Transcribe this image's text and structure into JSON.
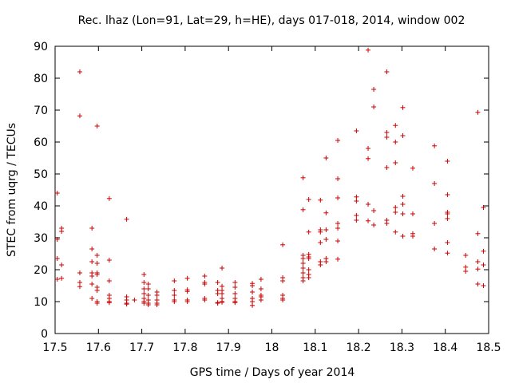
{
  "chart_data": {
    "type": "scatter",
    "title": "Rec. lhaz (Lon=91, Lat=29, h=HE), days 017-018, 2014, window 002",
    "xlabel": "GPS time / Days of year 2014",
    "ylabel": "STEC from uqrg / TECUs",
    "xlim": [
      17.5,
      18.5
    ],
    "ylim": [
      0,
      90
    ],
    "xticks": [
      17.5,
      17.6,
      17.7,
      17.8,
      17.9,
      18.0,
      18.1,
      18.2,
      18.3,
      18.4,
      18.5
    ],
    "xtick_labels": [
      "17.5",
      "17.6",
      "17.7",
      "17.8",
      "17.9",
      "18",
      "18.1",
      "18.2",
      "18.3",
      "18.4",
      "18.5"
    ],
    "yticks": [
      0,
      10,
      20,
      30,
      40,
      50,
      60,
      70,
      80,
      90
    ],
    "ytick_labels": [
      "0",
      "10",
      "20",
      "30",
      "40",
      "50",
      "60",
      "70",
      "80",
      "90"
    ],
    "marker": "+",
    "color": "#cc0000",
    "series": [
      {
        "name": "STEC",
        "points": [
          [
            17.505,
            44
          ],
          [
            17.505,
            29.5
          ],
          [
            17.505,
            23.5
          ],
          [
            17.505,
            17
          ],
          [
            17.515,
            33
          ],
          [
            17.515,
            32
          ],
          [
            17.515,
            21.5
          ],
          [
            17.515,
            17.3
          ],
          [
            17.557,
            82
          ],
          [
            17.557,
            68.2
          ],
          [
            17.557,
            19
          ],
          [
            17.557,
            16
          ],
          [
            17.557,
            14.7
          ],
          [
            17.585,
            33
          ],
          [
            17.585,
            26.5
          ],
          [
            17.585,
            22.5
          ],
          [
            17.585,
            19
          ],
          [
            17.585,
            18
          ],
          [
            17.585,
            15.5
          ],
          [
            17.585,
            11
          ],
          [
            17.597,
            65
          ],
          [
            17.597,
            24.5
          ],
          [
            17.597,
            22
          ],
          [
            17.597,
            19
          ],
          [
            17.597,
            18.5
          ],
          [
            17.597,
            14.5
          ],
          [
            17.597,
            13.5
          ],
          [
            17.597,
            10
          ],
          [
            17.597,
            9.5
          ],
          [
            17.625,
            42.3
          ],
          [
            17.625,
            23
          ],
          [
            17.625,
            16.5
          ],
          [
            17.625,
            12
          ],
          [
            17.625,
            11
          ],
          [
            17.625,
            10
          ],
          [
            17.625,
            9.7
          ],
          [
            17.665,
            35.8
          ],
          [
            17.665,
            11.5
          ],
          [
            17.665,
            10.5
          ],
          [
            17.665,
            9.5
          ],
          [
            17.665,
            9.2
          ],
          [
            17.683,
            10.5
          ],
          [
            17.705,
            18.5
          ],
          [
            17.705,
            16
          ],
          [
            17.705,
            14
          ],
          [
            17.705,
            12.5
          ],
          [
            17.705,
            11
          ],
          [
            17.705,
            10
          ],
          [
            17.705,
            9.5
          ],
          [
            17.715,
            15.5
          ],
          [
            17.715,
            14
          ],
          [
            17.715,
            12
          ],
          [
            17.715,
            10.5
          ],
          [
            17.715,
            9.5
          ],
          [
            17.715,
            9
          ],
          [
            17.735,
            13
          ],
          [
            17.735,
            12
          ],
          [
            17.735,
            10.5
          ],
          [
            17.735,
            9.5
          ],
          [
            17.735,
            9
          ],
          [
            17.775,
            16.5
          ],
          [
            17.775,
            13.5
          ],
          [
            17.775,
            12
          ],
          [
            17.775,
            10.5
          ],
          [
            17.775,
            10
          ],
          [
            17.805,
            17.3
          ],
          [
            17.805,
            13.7
          ],
          [
            17.805,
            13.2
          ],
          [
            17.805,
            10.5
          ],
          [
            17.805,
            10
          ],
          [
            17.845,
            18
          ],
          [
            17.845,
            16
          ],
          [
            17.845,
            15.5
          ],
          [
            17.845,
            11
          ],
          [
            17.845,
            10.5
          ],
          [
            17.875,
            16
          ],
          [
            17.875,
            13.5
          ],
          [
            17.875,
            12.5
          ],
          [
            17.875,
            9.7
          ],
          [
            17.875,
            9.5
          ],
          [
            17.885,
            20.5
          ],
          [
            17.885,
            14.8
          ],
          [
            17.885,
            13.5
          ],
          [
            17.885,
            12.5
          ],
          [
            17.885,
            11
          ],
          [
            17.885,
            10
          ],
          [
            17.885,
            9.8
          ],
          [
            17.915,
            16
          ],
          [
            17.915,
            14.5
          ],
          [
            17.915,
            12.5
          ],
          [
            17.915,
            11
          ],
          [
            17.915,
            10
          ],
          [
            17.915,
            9.7
          ],
          [
            17.955,
            15.7
          ],
          [
            17.955,
            15
          ],
          [
            17.955,
            13
          ],
          [
            17.955,
            11
          ],
          [
            17.955,
            10
          ],
          [
            17.955,
            8.8
          ],
          [
            17.975,
            17
          ],
          [
            17.975,
            14
          ],
          [
            17.975,
            12
          ],
          [
            17.975,
            11.5
          ],
          [
            17.975,
            10.5
          ],
          [
            18.025,
            27.8
          ],
          [
            18.025,
            17.5
          ],
          [
            18.025,
            16.5
          ],
          [
            18.025,
            12
          ],
          [
            18.025,
            11
          ],
          [
            18.025,
            10.5
          ],
          [
            18.072,
            48.8
          ],
          [
            18.072,
            38.8
          ],
          [
            18.072,
            24.5
          ],
          [
            18.072,
            23.5
          ],
          [
            18.072,
            22
          ],
          [
            18.072,
            20.5
          ],
          [
            18.072,
            19
          ],
          [
            18.072,
            17.5
          ],
          [
            18.072,
            16.5
          ],
          [
            18.085,
            42
          ],
          [
            18.085,
            31.8
          ],
          [
            18.085,
            24.8
          ],
          [
            18.085,
            24
          ],
          [
            18.085,
            23.5
          ],
          [
            18.085,
            20
          ],
          [
            18.085,
            18.5
          ],
          [
            18.085,
            17.5
          ],
          [
            18.112,
            41.8
          ],
          [
            18.112,
            32.5
          ],
          [
            18.112,
            31.8
          ],
          [
            18.112,
            28.5
          ],
          [
            18.112,
            22.5
          ],
          [
            18.112,
            21.5
          ],
          [
            18.125,
            55
          ],
          [
            18.125,
            37.8
          ],
          [
            18.125,
            32.5
          ],
          [
            18.125,
            29.5
          ],
          [
            18.125,
            23.5
          ],
          [
            18.125,
            22.5
          ],
          [
            18.152,
            60.5
          ],
          [
            18.152,
            48.5
          ],
          [
            18.152,
            42.5
          ],
          [
            18.152,
            34.5
          ],
          [
            18.152,
            33
          ],
          [
            18.152,
            29
          ],
          [
            18.152,
            23.3
          ],
          [
            18.195,
            63.5
          ],
          [
            18.195,
            42.8
          ],
          [
            18.195,
            41.5
          ],
          [
            18.195,
            37
          ],
          [
            18.195,
            35.5
          ],
          [
            18.222,
            88.8
          ],
          [
            18.222,
            58
          ],
          [
            18.222,
            54.8
          ],
          [
            18.222,
            40.5
          ],
          [
            18.222,
            35.3
          ],
          [
            18.235,
            76.5
          ],
          [
            18.235,
            71
          ],
          [
            18.235,
            38.5
          ],
          [
            18.235,
            34
          ],
          [
            18.265,
            82
          ],
          [
            18.265,
            63
          ],
          [
            18.265,
            61.5
          ],
          [
            18.265,
            52
          ],
          [
            18.265,
            35.5
          ],
          [
            18.265,
            34.5
          ],
          [
            18.285,
            65.2
          ],
          [
            18.285,
            60
          ],
          [
            18.285,
            53.5
          ],
          [
            18.285,
            39.5
          ],
          [
            18.285,
            38
          ],
          [
            18.285,
            31.8
          ],
          [
            18.302,
            70.8
          ],
          [
            18.302,
            62
          ],
          [
            18.302,
            43
          ],
          [
            18.302,
            40.5
          ],
          [
            18.302,
            37.5
          ],
          [
            18.302,
            30.5
          ],
          [
            18.325,
            51.8
          ],
          [
            18.325,
            37.5
          ],
          [
            18.325,
            31.3
          ],
          [
            18.325,
            30.5
          ],
          [
            18.375,
            58.8
          ],
          [
            18.375,
            47
          ],
          [
            18.375,
            34.5
          ],
          [
            18.375,
            26.5
          ],
          [
            18.405,
            54
          ],
          [
            18.405,
            43.5
          ],
          [
            18.405,
            38
          ],
          [
            18.405,
            37.5
          ],
          [
            18.405,
            36
          ],
          [
            18.405,
            28.5
          ],
          [
            18.405,
            25.2
          ],
          [
            18.447,
            24.5
          ],
          [
            18.447,
            20.8
          ],
          [
            18.447,
            19.5
          ],
          [
            18.475,
            69.3
          ],
          [
            18.475,
            31.3
          ],
          [
            18.475,
            22.5
          ],
          [
            18.475,
            20.2
          ],
          [
            18.475,
            15.5
          ],
          [
            18.488,
            39.5
          ],
          [
            18.488,
            25.8
          ],
          [
            18.488,
            21.5
          ],
          [
            18.488,
            15
          ]
        ]
      }
    ]
  }
}
